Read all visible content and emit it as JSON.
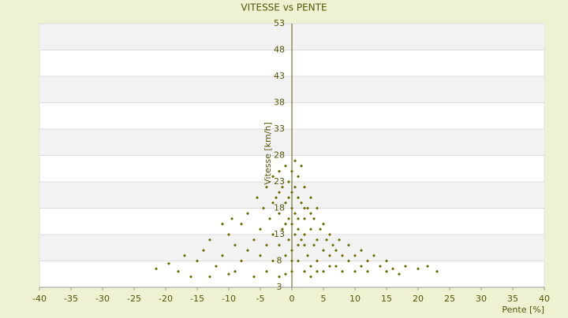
{
  "chart_data": {
    "type": "scatter",
    "title": "VITESSE vs PENTE",
    "xlabel": "Pente [%]",
    "ylabel": "Vitesse [km/h]",
    "color": "#6b6b00",
    "xlim": [
      -40,
      40
    ],
    "xticks": [
      -40,
      -35,
      -30,
      -25,
      -20,
      -15,
      -10,
      -5,
      0,
      5,
      10,
      15,
      20,
      25,
      30,
      35,
      40
    ],
    "ylim": [
      3,
      53
    ],
    "yticks": [
      3,
      8,
      13,
      18,
      23,
      28,
      33,
      38,
      43,
      48,
      53
    ],
    "grid": true,
    "x": [
      -19.5,
      -18,
      -17,
      -16,
      -15,
      -14,
      -13,
      -12,
      -11,
      -10,
      -10,
      -9,
      -9,
      -8,
      -8,
      -7,
      -7,
      -6,
      -6,
      -5.5,
      -5,
      -5,
      -4.5,
      -4,
      -4,
      -4,
      -3.5,
      -3,
      -3,
      -3,
      -2.5,
      -2,
      -2,
      -2,
      -2,
      -1.5,
      -1.5,
      -1,
      -1,
      -1,
      -0.5,
      -0.5,
      -0.5,
      0,
      0,
      0,
      0,
      0,
      0,
      0.5,
      0.5,
      0.5,
      1,
      1,
      1,
      1,
      1.5,
      1.5,
      2,
      2,
      2,
      2,
      2.5,
      2.5,
      3,
      3,
      3,
      3.5,
      3.5,
      4,
      4,
      4,
      4.5,
      5,
      5,
      5,
      5.5,
      6,
      6,
      6.5,
      7,
      7,
      7.5,
      8,
      8,
      9,
      9,
      10,
      10,
      11,
      11,
      12,
      12,
      13,
      14,
      15,
      15,
      16,
      17,
      18,
      20,
      21.5,
      23,
      -21.5,
      -13,
      -11,
      -9.5,
      -3,
      1.5,
      0.5,
      -0.5,
      1,
      2,
      3,
      -1,
      -2,
      0,
      1,
      2,
      4,
      6,
      3,
      -1
    ],
    "values": [
      7.5,
      6,
      9,
      5,
      8,
      10,
      12,
      7,
      9,
      5.5,
      13,
      11,
      6,
      15,
      8,
      17,
      10,
      12,
      5,
      20,
      14,
      9,
      18,
      22,
      11,
      6,
      16,
      24,
      13,
      8,
      20,
      25,
      17,
      11,
      5,
      22,
      14,
      26,
      19,
      9,
      23,
      16,
      12,
      25,
      21,
      18,
      15,
      10,
      6,
      22,
      17,
      13,
      24,
      20,
      14,
      8,
      19,
      12,
      22,
      16,
      11,
      6,
      18,
      9,
      20,
      14,
      7,
      16,
      11,
      18,
      12,
      8,
      14,
      15,
      10,
      6,
      12,
      13,
      9,
      11,
      10,
      7,
      12,
      9,
      6,
      11,
      8,
      9,
      6,
      10,
      7,
      8,
      6,
      9,
      7,
      8,
      6,
      6.5,
      5.5,
      7,
      6.5,
      7,
      6,
      6.5,
      5,
      15,
      16,
      19,
      26,
      27,
      20,
      16,
      18,
      17,
      15,
      21,
      8,
      11,
      13,
      6,
      7,
      5,
      5.5
    ]
  }
}
